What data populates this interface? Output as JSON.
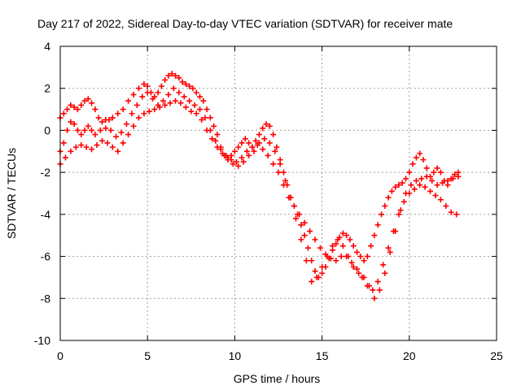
{
  "chart_data": {
    "type": "scatter",
    "title": "Day 217 of 2022, Sidereal Day-to-day VTEC variation (SDTVAR) for receiver mate",
    "xlabel": "GPS time / hours",
    "ylabel": "SDTVAR / TECUs",
    "xlim": [
      0,
      25
    ],
    "ylim": [
      -10,
      4
    ],
    "xticks": [
      0,
      5,
      10,
      15,
      20,
      25
    ],
    "yticks": [
      -10,
      -8,
      -6,
      -4,
      -2,
      0,
      2,
      4
    ],
    "grid": true,
    "marker": "+",
    "color": "#ff0000",
    "series": [
      {
        "x": [
          0.0,
          0.2,
          0.4,
          0.6,
          0.8,
          1.0,
          1.2,
          1.4,
          1.6,
          1.8,
          2.0,
          2.2,
          2.4,
          2.6,
          2.8,
          3.0,
          3.3,
          3.6,
          3.9,
          4.2,
          4.5,
          4.8,
          5.0,
          5.2,
          5.4,
          5.6,
          5.8,
          6.0,
          6.2,
          6.4,
          6.6,
          6.8,
          7.0,
          7.2,
          7.4,
          7.6,
          7.8,
          8.0,
          8.2,
          8.4,
          8.6,
          8.8,
          9.0,
          9.2,
          9.4,
          9.6,
          9.8,
          10.0,
          10.2,
          10.4,
          10.6,
          10.8,
          11.0,
          11.2,
          11.4,
          11.6,
          11.8,
          12.0,
          12.2,
          12.4,
          12.6,
          12.8,
          13.0,
          13.2,
          13.4,
          13.6,
          13.8,
          14.0,
          14.2,
          14.4,
          14.6,
          14.8,
          15.0,
          15.2,
          15.4,
          15.6,
          15.8,
          16.0,
          16.2,
          16.4,
          16.6,
          16.8,
          17.0,
          17.2,
          17.4,
          17.6,
          17.8,
          18.0,
          18.2,
          18.4,
          18.6,
          18.8,
          19.0,
          19.2,
          19.4,
          19.6,
          19.8,
          20.0,
          20.2,
          20.4,
          20.6,
          20.8,
          21.0,
          21.2,
          21.4,
          21.6,
          21.8,
          22.0,
          22.2,
          22.4,
          22.6,
          22.8
        ],
        "y": [
          0.6,
          0.8,
          1.0,
          1.2,
          1.1,
          1.0,
          1.2,
          1.4,
          1.5,
          1.3,
          1.0,
          0.6,
          0.4,
          0.5,
          0.5,
          0.6,
          0.8,
          1.0,
          1.4,
          1.7,
          2.0,
          2.2,
          2.1,
          1.8,
          1.6,
          1.8,
          2.1,
          2.4,
          2.6,
          2.7,
          2.6,
          2.5,
          2.3,
          2.2,
          2.1,
          2.0,
          1.8,
          1.6,
          1.4,
          1.0,
          0.6,
          0.2,
          -0.2,
          -0.8,
          -1.2,
          -1.3,
          -1.2,
          -1.0,
          -0.8,
          -0.6,
          -0.4,
          -0.6,
          -0.8,
          -0.5,
          -0.2,
          0.1,
          0.3,
          0.2,
          -0.2,
          -0.8,
          -1.4,
          -2.0,
          -2.6,
          -3.2,
          -3.6,
          -4.0,
          -4.5,
          -5.0,
          -5.6,
          -6.2,
          -6.7,
          -7.0,
          -6.8,
          -6.5,
          -6.1,
          -5.7,
          -5.4,
          -5.1,
          -4.9,
          -5.0,
          -5.2,
          -5.5,
          -5.8,
          -6.0,
          -6.2,
          -6.0,
          -5.5,
          -5.0,
          -4.5,
          -4.0,
          -3.6,
          -3.2,
          -2.9,
          -2.7,
          -2.6,
          -2.5,
          -2.3,
          -2.0,
          -1.6,
          -1.3,
          -1.1,
          -1.4,
          -1.8,
          -2.2,
          -2.0,
          -1.8,
          -2.0,
          -2.4,
          -2.6,
          -2.3,
          -2.1,
          -2.0
        ]
      },
      {
        "x": [
          0.0,
          0.2,
          0.4,
          0.6,
          0.8,
          1.0,
          1.2,
          1.4,
          1.6,
          1.8,
          2.0,
          2.3,
          2.6,
          2.9,
          3.2,
          3.5,
          3.8,
          4.1,
          4.4,
          4.7,
          5.0,
          5.3,
          5.6,
          5.9,
          6.2,
          6.5,
          6.8,
          7.1,
          7.4,
          7.7,
          8.0,
          8.3,
          8.6,
          8.9,
          9.2,
          9.5,
          9.8,
          10.1,
          10.4,
          10.7,
          11.0,
          11.3,
          11.6,
          11.9,
          12.2,
          12.5,
          12.8,
          13.1,
          13.4,
          13.7,
          14.0,
          14.3,
          14.6,
          14.9,
          15.2,
          15.5,
          15.8,
          16.1,
          16.4,
          16.7,
          17.0,
          17.3,
          17.6,
          17.9,
          18.2,
          18.5,
          18.8,
          19.1,
          19.4,
          19.7,
          20.0,
          20.3,
          20.6,
          20.9,
          21.2,
          21.5,
          21.8,
          22.1,
          22.4,
          22.7
        ],
        "y": [
          -1.0,
          -0.6,
          0.0,
          0.4,
          0.3,
          0.0,
          -0.2,
          0.0,
          0.2,
          0.0,
          -0.2,
          0.0,
          0.1,
          0.0,
          -0.3,
          -0.1,
          0.3,
          0.8,
          1.2,
          1.6,
          1.8,
          1.5,
          1.2,
          1.4,
          1.7,
          2.0,
          1.8,
          1.6,
          1.4,
          1.2,
          1.0,
          0.6,
          0.0,
          -0.5,
          -0.9,
          -1.2,
          -1.4,
          -1.5,
          -1.3,
          -1.0,
          -0.8,
          -0.7,
          -0.9,
          -1.2,
          -1.6,
          -2.0,
          -2.6,
          -3.2,
          -3.6,
          -4.0,
          -4.4,
          -4.8,
          -5.2,
          -5.6,
          -5.9,
          -6.1,
          -6.2,
          -6.0,
          -6.0,
          -6.3,
          -6.6,
          -7.0,
          -7.4,
          -7.6,
          -7.2,
          -6.4,
          -5.6,
          -4.8,
          -4.0,
          -3.4,
          -3.0,
          -2.8,
          -2.6,
          -2.7,
          -2.9,
          -3.1,
          -3.3,
          -3.6,
          -3.9,
          -4.0
        ]
      },
      {
        "x": [
          0.0,
          0.3,
          0.6,
          0.9,
          1.2,
          1.5,
          1.8,
          2.1,
          2.4,
          2.7,
          3.0,
          3.3,
          3.6,
          3.9,
          4.2,
          4.5,
          4.8,
          5.1,
          5.4,
          5.7,
          6.0,
          6.3,
          6.6,
          6.9,
          7.2,
          7.5,
          7.8,
          8.1,
          8.4,
          8.7,
          9.0,
          9.3,
          9.6,
          9.9,
          10.2,
          10.5,
          10.8,
          11.1,
          11.4,
          11.7,
          12.0,
          12.3,
          12.6,
          12.9,
          13.2,
          13.5,
          13.8,
          14.1,
          14.4,
          14.7,
          15.0,
          15.3,
          15.6,
          15.9,
          16.2,
          16.5,
          16.8,
          17.1,
          17.4,
          17.7,
          18.0,
          18.3,
          18.6,
          18.9,
          19.2,
          19.5,
          19.8,
          20.1,
          20.4,
          20.7,
          21.0,
          21.3,
          21.6,
          21.9,
          22.2,
          22.5,
          22.8
        ],
        "y": [
          -1.6,
          -1.3,
          -1.0,
          -0.8,
          -0.7,
          -0.8,
          -0.9,
          -0.7,
          -0.5,
          -0.6,
          -0.8,
          -1.0,
          -0.6,
          -0.2,
          0.2,
          0.6,
          0.8,
          0.9,
          1.0,
          1.1,
          1.2,
          1.3,
          1.4,
          1.3,
          1.1,
          0.9,
          0.8,
          0.5,
          0.0,
          -0.4,
          -0.8,
          -1.1,
          -1.4,
          -1.6,
          -1.7,
          -1.5,
          -1.2,
          -1.0,
          -0.6,
          -0.4,
          -0.6,
          -1.0,
          -1.6,
          -2.4,
          -3.2,
          -4.2,
          -5.2,
          -6.2,
          -7.2,
          -7.0,
          -6.5,
          -6.0,
          -5.5,
          -5.2,
          -5.5,
          -6.0,
          -6.5,
          -6.8,
          -7.0,
          -7.4,
          -8.0,
          -7.6,
          -6.8,
          -5.8,
          -4.8,
          -3.8,
          -3.0,
          -2.6,
          -2.4,
          -2.3,
          -2.2,
          -2.4,
          -2.6,
          -2.5,
          -2.4,
          -2.3,
          -2.2
        ]
      }
    ]
  }
}
